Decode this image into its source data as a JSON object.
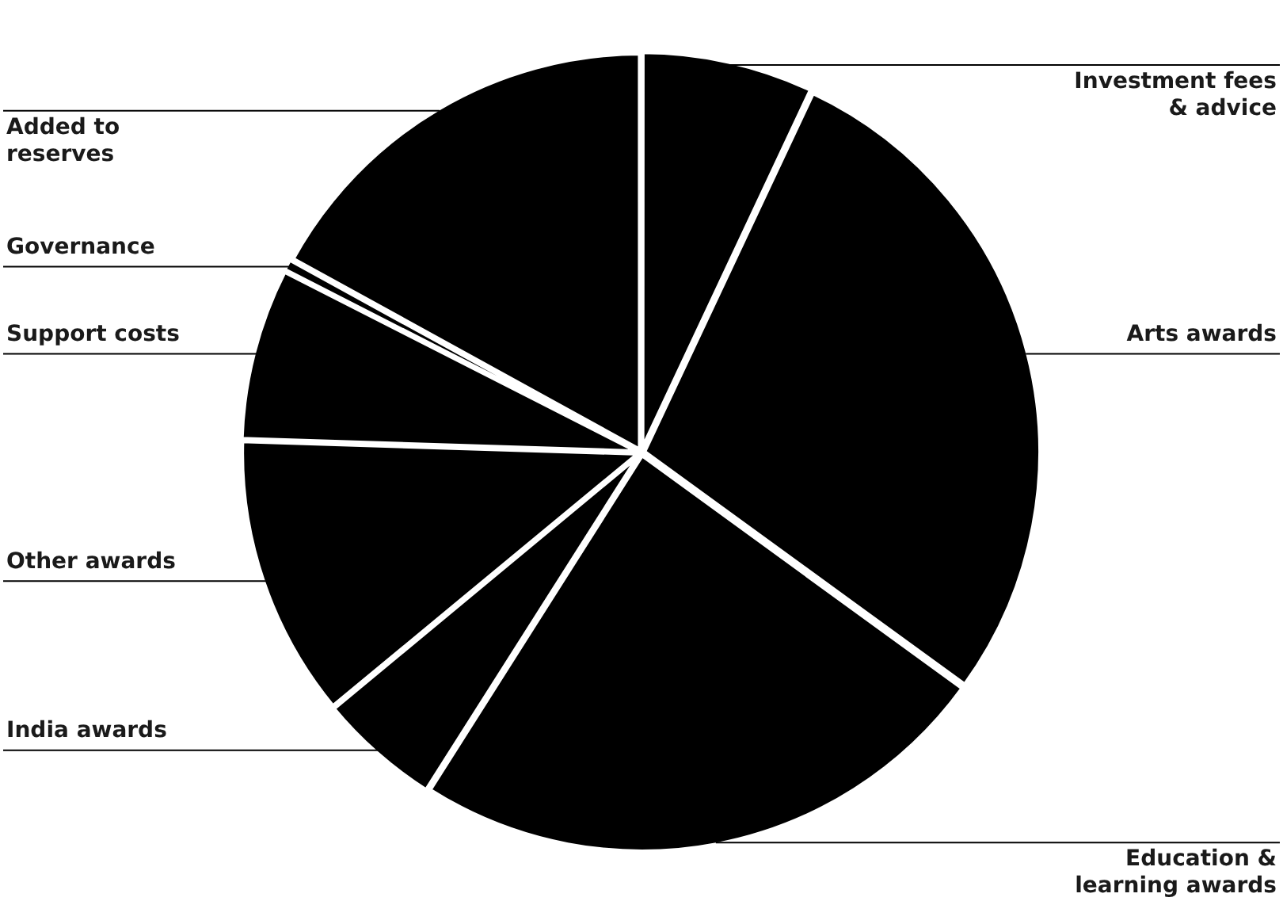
{
  "chart_data": {
    "type": "pie",
    "categories": [
      "Investment fees & advice",
      "Arts awards",
      "Education & learning awards",
      "India awards",
      "Other awards",
      "Support costs",
      "Governance",
      "Added to reserves"
    ],
    "values": [
      7,
      28,
      24,
      5,
      11.5,
      7,
      0.5,
      17
    ],
    "colors": [
      "#000000",
      "#000000",
      "#000000",
      "#000000",
      "#000000",
      "#000000",
      "#000000",
      "#000000"
    ],
    "legend": false
  }
}
